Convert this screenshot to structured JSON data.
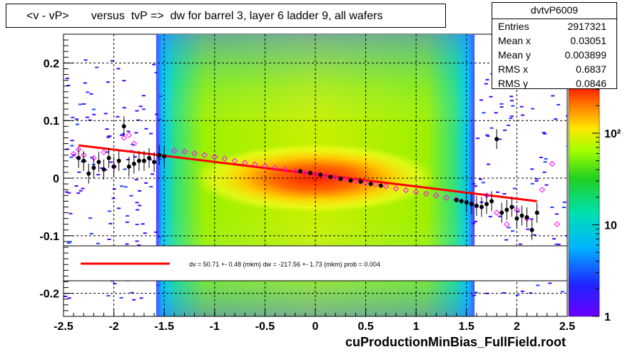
{
  "title": "<v - vP>       versus  tvP =>  dw for barrel 3, layer 6 ladder 9, all wafers",
  "stats": {
    "name": "dvtvP6009",
    "rows": [
      {
        "label": "Entries",
        "value": "2917321"
      },
      {
        "label": "Mean x",
        "value": "0.03051"
      },
      {
        "label": "Mean y",
        "value": "0.003899"
      },
      {
        "label": "RMS x",
        "value": "0.6837"
      },
      {
        "label": "RMS y",
        "value": "0.0846"
      }
    ]
  },
  "footer": "cuProductionMinBias_FullField.root",
  "legend": {
    "fit_text": "dv =   50.71 +-  0.48 (mkm) dw = -217.56 +-  1.73 (mkm) prob = 0.004",
    "line_color": "#ff0000"
  },
  "chart_data": {
    "type": "heatmap",
    "xlim": [
      -2.5,
      2.5
    ],
    "ylim": [
      -0.24,
      0.25
    ],
    "x_ticks": [
      "-2.5",
      "-2",
      "-1.5",
      "-1",
      "-0.5",
      "0",
      "0.5",
      "1",
      "1.5",
      "2",
      "2.5"
    ],
    "y_ticks": [
      "-0.2",
      "-0.1",
      "0",
      "0.1",
      "0.2"
    ],
    "colorbar_ticks": [
      "1",
      "10",
      "10²"
    ],
    "grid": true,
    "fit_line": {
      "x": [
        -2.35,
        2.2
      ],
      "y": [
        0.057,
        -0.04
      ]
    },
    "profile_black": [
      {
        "x": -2.35,
        "y": 0.035
      },
      {
        "x": -2.3,
        "y": 0.03
      },
      {
        "x": -2.25,
        "y": 0.008
      },
      {
        "x": -2.2,
        "y": 0.018
      },
      {
        "x": -2.15,
        "y": 0.028
      },
      {
        "x": -2.1,
        "y": 0.015
      },
      {
        "x": -2.05,
        "y": 0.035
      },
      {
        "x": -2.0,
        "y": 0.02
      },
      {
        "x": -1.95,
        "y": 0.03
      },
      {
        "x": -1.9,
        "y": 0.09
      },
      {
        "x": -1.85,
        "y": 0.02
      },
      {
        "x": -1.8,
        "y": 0.025
      },
      {
        "x": -1.75,
        "y": 0.03
      },
      {
        "x": -1.7,
        "y": 0.03
      },
      {
        "x": -1.65,
        "y": 0.035
      },
      {
        "x": -1.6,
        "y": 0.028
      },
      {
        "x": -1.55,
        "y": 0.04
      },
      {
        "x": -1.5,
        "y": 0.038
      },
      {
        "x": -0.15,
        "y": 0.012
      },
      {
        "x": -0.05,
        "y": 0.009
      },
      {
        "x": 0.05,
        "y": 0.006
      },
      {
        "x": 0.15,
        "y": 0.002
      },
      {
        "x": 0.25,
        "y": -0.001
      },
      {
        "x": 0.35,
        "y": -0.004
      },
      {
        "x": 0.45,
        "y": -0.006
      },
      {
        "x": 0.55,
        "y": -0.01
      },
      {
        "x": 0.65,
        "y": -0.013
      },
      {
        "x": 1.4,
        "y": -0.038
      },
      {
        "x": 1.45,
        "y": -0.04
      },
      {
        "x": 1.5,
        "y": -0.042
      },
      {
        "x": 1.55,
        "y": -0.045
      },
      {
        "x": 1.6,
        "y": -0.048
      },
      {
        "x": 1.65,
        "y": -0.05
      },
      {
        "x": 1.7,
        "y": -0.045
      },
      {
        "x": 1.75,
        "y": -0.04
      },
      {
        "x": 1.8,
        "y": 0.068
      },
      {
        "x": 1.85,
        "y": -0.06
      },
      {
        "x": 1.9,
        "y": -0.055
      },
      {
        "x": 1.95,
        "y": -0.05
      },
      {
        "x": 2.0,
        "y": -0.07
      },
      {
        "x": 2.05,
        "y": -0.065
      },
      {
        "x": 2.1,
        "y": -0.068
      },
      {
        "x": 2.15,
        "y": -0.09
      },
      {
        "x": 2.2,
        "y": -0.06
      }
    ],
    "profile_pink": [
      {
        "x": -2.4,
        "y": 0.042
      },
      {
        "x": -2.35,
        "y": 0.05
      },
      {
        "x": -2.3,
        "y": 0.04
      },
      {
        "x": -2.2,
        "y": 0.035
      },
      {
        "x": -2.1,
        "y": 0.045
      },
      {
        "x": -2.0,
        "y": 0.02
      },
      {
        "x": -1.9,
        "y": 0.07
      },
      {
        "x": -1.85,
        "y": 0.075
      },
      {
        "x": -1.8,
        "y": 0.06
      },
      {
        "x": -1.4,
        "y": 0.048
      },
      {
        "x": -1.3,
        "y": 0.046
      },
      {
        "x": -1.2,
        "y": 0.043
      },
      {
        "x": -1.1,
        "y": 0.04
      },
      {
        "x": -1.0,
        "y": 0.037
      },
      {
        "x": -0.9,
        "y": 0.034
      },
      {
        "x": -0.8,
        "y": 0.03
      },
      {
        "x": -0.7,
        "y": 0.027
      },
      {
        "x": -0.6,
        "y": 0.024
      },
      {
        "x": -0.5,
        "y": 0.021
      },
      {
        "x": -0.4,
        "y": 0.018
      },
      {
        "x": -0.3,
        "y": 0.015
      },
      {
        "x": -0.2,
        "y": 0.012
      },
      {
        "x": -0.1,
        "y": 0.01
      },
      {
        "x": 0.0,
        "y": 0.007
      },
      {
        "x": 0.1,
        "y": 0.004
      },
      {
        "x": 0.2,
        "y": 0.001
      },
      {
        "x": 0.3,
        "y": -0.002
      },
      {
        "x": 0.4,
        "y": -0.005
      },
      {
        "x": 0.5,
        "y": -0.008
      },
      {
        "x": 0.6,
        "y": -0.011
      },
      {
        "x": 0.7,
        "y": -0.014
      },
      {
        "x": 0.8,
        "y": -0.018
      },
      {
        "x": 0.9,
        "y": -0.021
      },
      {
        "x": 1.0,
        "y": -0.024
      },
      {
        "x": 1.1,
        "y": -0.027
      },
      {
        "x": 1.2,
        "y": -0.03
      },
      {
        "x": 1.3,
        "y": -0.034
      },
      {
        "x": 1.4,
        "y": -0.037
      },
      {
        "x": 1.7,
        "y": -0.03
      },
      {
        "x": 1.8,
        "y": -0.06
      },
      {
        "x": 1.9,
        "y": -0.08
      },
      {
        "x": 2.0,
        "y": -0.055
      },
      {
        "x": 2.1,
        "y": -0.07
      },
      {
        "x": 2.25,
        "y": -0.02
      },
      {
        "x": 2.35,
        "y": 0.025
      },
      {
        "x": 2.4,
        "y": -0.08
      }
    ]
  }
}
